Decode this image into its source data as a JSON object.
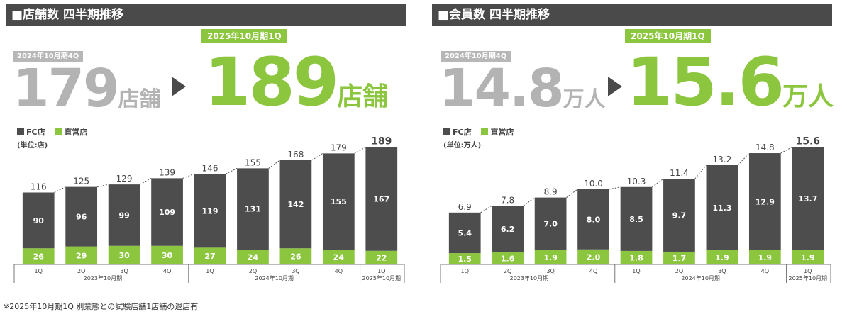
{
  "stores": {
    "title": "■店舗数 四半期推移",
    "prev_badge": "2024年10月期4Q",
    "prev_value": "179",
    "prev_unit": "店舗",
    "cur_badge": "2025年10月期1Q",
    "cur_value": "189",
    "cur_unit": "店舗",
    "legend_fc": "FC店",
    "legend_direct": "直営店",
    "unit_note": "(単位:店)"
  },
  "members": {
    "title": "■会員数 四半期推移",
    "prev_badge": "2024年10月期4Q",
    "prev_value": "14.8",
    "prev_unit": "万人",
    "cur_badge": "2025年10月期1Q",
    "cur_value": "15.6",
    "cur_unit": "万人",
    "legend_fc": "FC店",
    "legend_direct": "直営店",
    "unit_note": "(単位:万人)"
  },
  "footnote": "※2025年10月期1Q 別業態との試験店舗1店舗の退店有",
  "colors": {
    "fc": "#4d4d4d",
    "direct": "#8cc63f"
  },
  "chart_data": [
    {
      "type": "bar",
      "stacked": true,
      "categories": [
        "1Q",
        "2Q",
        "3Q",
        "4Q",
        "1Q",
        "2Q",
        "3Q",
        "4Q",
        "1Q"
      ],
      "groups": [
        {
          "label": "2023年10月期",
          "count": 4
        },
        {
          "label": "2024年10月期",
          "count": 4
        },
        {
          "label": "2025年10月期",
          "count": 1
        }
      ],
      "series": [
        {
          "name": "直営店",
          "values": [
            26,
            29,
            30,
            30,
            27,
            24,
            26,
            24,
            22
          ]
        },
        {
          "name": "FC店",
          "values": [
            90,
            96,
            99,
            109,
            119,
            131,
            142,
            155,
            167
          ]
        }
      ],
      "totals": [
        "116",
        "125",
        "129",
        "139",
        "146",
        "155",
        "168",
        "179",
        "189"
      ],
      "ylim": [
        0,
        200
      ]
    },
    {
      "type": "bar",
      "stacked": true,
      "categories": [
        "1Q",
        "2Q",
        "3Q",
        "4Q",
        "1Q",
        "2Q",
        "3Q",
        "4Q",
        "1Q"
      ],
      "groups": [
        {
          "label": "2023年10月期",
          "count": 4
        },
        {
          "label": "2024年10月期",
          "count": 4
        },
        {
          "label": "2025年10月期",
          "count": 1
        }
      ],
      "series": [
        {
          "name": "直営店",
          "values": [
            1.5,
            1.6,
            1.9,
            2.0,
            1.8,
            1.7,
            1.9,
            1.9,
            1.9
          ]
        },
        {
          "name": "FC店",
          "values": [
            5.4,
            6.2,
            7.0,
            8.0,
            8.5,
            9.7,
            11.3,
            12.9,
            13.7
          ]
        }
      ],
      "totals": [
        "6.9",
        "7.8",
        "8.9",
        "10.0",
        "10.3",
        "11.4",
        "13.2",
        "14.8",
        "15.6"
      ],
      "ylim": [
        0,
        16.5
      ]
    }
  ]
}
